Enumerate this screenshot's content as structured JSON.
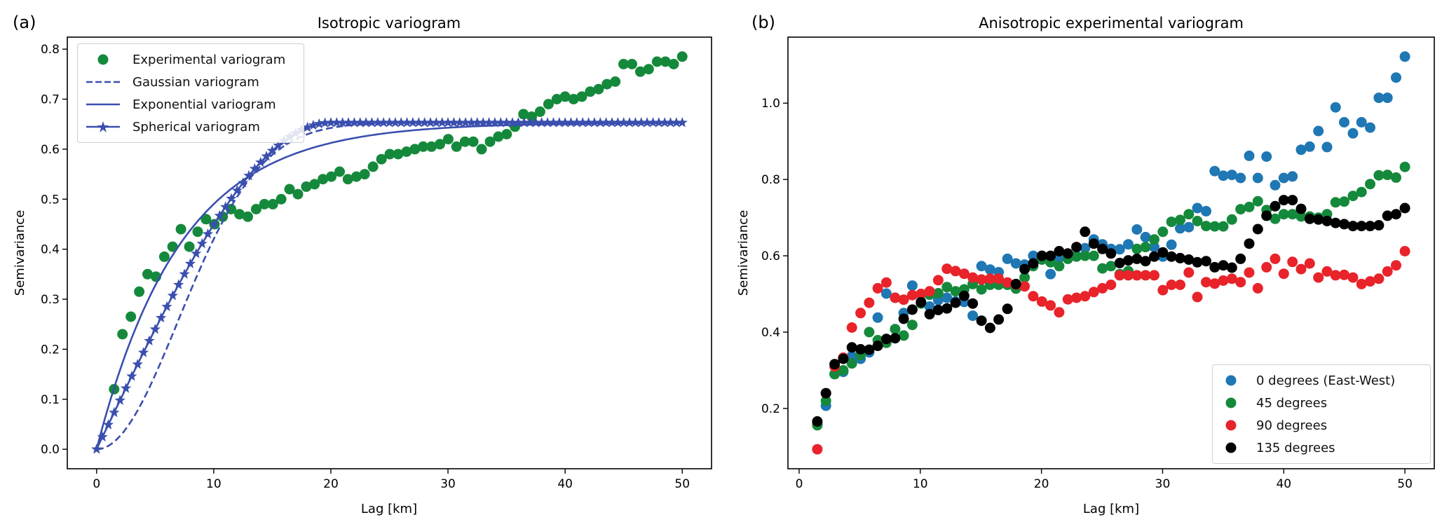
{
  "chart_data": [
    {
      "panel_label": "(a)",
      "type": "scatter+line",
      "title": "Isotropic variogram",
      "xlabel": "Lag [km]",
      "ylabel": "Semivariance",
      "xlim": [
        -2.5,
        52.5
      ],
      "ylim": [
        -0.039,
        0.824
      ],
      "xticks": [
        0,
        10,
        20,
        30,
        40,
        50
      ],
      "yticks": [
        0.0,
        0.1,
        0.2,
        0.3,
        0.4,
        0.5,
        0.6,
        0.7,
        0.8
      ],
      "grid": false,
      "legend_position": "top-left",
      "series": [
        {
          "name": "Experimental variogram",
          "kind": "scatter",
          "color": "#15893b",
          "x": [
            1.5,
            2.21,
            2.93,
            3.64,
            4.35,
            5.07,
            5.78,
            6.49,
            7.2,
            7.92,
            8.63,
            9.34,
            10.06,
            10.77,
            11.48,
            12.2,
            12.91,
            13.62,
            14.33,
            15.05,
            15.76,
            16.47,
            17.19,
            17.9,
            18.61,
            19.32,
            20.04,
            20.75,
            21.46,
            22.18,
            22.89,
            23.6,
            24.32,
            25.03,
            25.74,
            26.46,
            27.17,
            27.88,
            28.59,
            29.31,
            30.02,
            30.73,
            31.45,
            32.16,
            32.87,
            33.59,
            34.3,
            35.01,
            35.72,
            36.44,
            37.15,
            37.86,
            38.58,
            39.29,
            40.0,
            40.72,
            41.43,
            42.14,
            42.86,
            43.57,
            44.28,
            44.99,
            45.71,
            46.42,
            47.13,
            47.85,
            48.56,
            49.27,
            50.0
          ],
          "y": [
            0.12,
            0.23,
            0.265,
            0.315,
            0.35,
            0.345,
            0.385,
            0.405,
            0.44,
            0.405,
            0.435,
            0.46,
            0.45,
            0.465,
            0.48,
            0.47,
            0.465,
            0.48,
            0.49,
            0.49,
            0.5,
            0.52,
            0.51,
            0.525,
            0.53,
            0.54,
            0.545,
            0.555,
            0.54,
            0.545,
            0.55,
            0.565,
            0.58,
            0.59,
            0.59,
            0.595,
            0.6,
            0.605,
            0.605,
            0.61,
            0.62,
            0.605,
            0.615,
            0.615,
            0.6,
            0.615,
            0.625,
            0.63,
            0.645,
            0.67,
            0.665,
            0.675,
            0.69,
            0.7,
            0.705,
            0.7,
            0.705,
            0.715,
            0.72,
            0.73,
            0.735,
            0.77,
            0.77,
            0.755,
            0.76,
            0.775,
            0.775,
            0.77,
            0.785
          ]
        },
        {
          "name": "Gaussian variogram",
          "kind": "model",
          "model": "gaussian",
          "sill": 0.653,
          "range": 9.85,
          "style": "dashed",
          "color": "#3a4fae"
        },
        {
          "name": "Exponential variogram",
          "kind": "model",
          "model": "exponential",
          "sill": 0.653,
          "range": 7.2,
          "style": "solid",
          "color": "#3a4fae"
        },
        {
          "name": "Spherical variogram",
          "kind": "model",
          "model": "spherical",
          "sill": 0.653,
          "range": 20.0,
          "style": "star-markers",
          "color": "#3a4fae"
        }
      ]
    },
    {
      "panel_label": "(b)",
      "type": "scatter",
      "title": "Anisotropic experimental variogram",
      "xlabel": "Lag [km]",
      "ylabel": "Semivariance",
      "xlim": [
        -0.925,
        52.425
      ],
      "ylim": [
        0.042,
        1.173
      ],
      "xticks": [
        0,
        10,
        20,
        30,
        40,
        50
      ],
      "yticks": [
        0.2,
        0.4,
        0.6,
        0.8,
        1.0
      ],
      "grid": false,
      "legend_position": "bottom-right",
      "series": [
        {
          "name": "0 degrees (East-West)",
          "color": "#1f77b4",
          "y": [
            0.16,
            0.207,
            0.29,
            0.296,
            0.337,
            0.33,
            0.347,
            0.438,
            0.501,
            0.49,
            0.45,
            0.522,
            0.48,
            0.467,
            0.484,
            0.49,
            0.48,
            0.479,
            0.443,
            0.573,
            0.564,
            0.557,
            0.592,
            0.58,
            0.577,
            0.6,
            0.6,
            0.552,
            0.595,
            0.6,
            0.6,
            0.62,
            0.643,
            0.63,
            0.618,
            0.617,
            0.63,
            0.669,
            0.649,
            0.623,
            0.598,
            0.629,
            0.672,
            0.675,
            0.725,
            0.717,
            0.822,
            0.81,
            0.812,
            0.804,
            0.862,
            0.804,
            0.86,
            0.785,
            0.804,
            0.808,
            0.878,
            0.886,
            0.927,
            0.885,
            0.989,
            0.95,
            0.921,
            0.95,
            0.936,
            1.014,
            1.014,
            1.067,
            1.122
          ]
        },
        {
          "name": "45 degrees",
          "color": "#15893b",
          "y": [
            0.156,
            0.22,
            0.29,
            0.3,
            0.318,
            0.34,
            0.4,
            0.379,
            0.372,
            0.408,
            0.391,
            0.419,
            0.475,
            0.498,
            0.502,
            0.518,
            0.507,
            0.512,
            0.526,
            0.512,
            0.524,
            0.524,
            0.524,
            0.514,
            0.543,
            0.573,
            0.59,
            0.583,
            0.573,
            0.592,
            0.598,
            0.6,
            0.6,
            0.567,
            0.573,
            0.552,
            0.56,
            0.618,
            0.623,
            0.643,
            0.663,
            0.689,
            0.694,
            0.709,
            0.691,
            0.678,
            0.677,
            0.677,
            0.695,
            0.722,
            0.728,
            0.743,
            0.72,
            0.697,
            0.709,
            0.709,
            0.703,
            0.703,
            0.7,
            0.709,
            0.74,
            0.742,
            0.757,
            0.767,
            0.788,
            0.811,
            0.812,
            0.805,
            0.833
          ]
        },
        {
          "name": "90 degrees",
          "color": "#e8232a",
          "y": [
            0.093,
            0.24,
            0.31,
            0.333,
            0.412,
            0.45,
            0.477,
            0.515,
            0.53,
            0.49,
            0.485,
            0.497,
            0.5,
            0.507,
            0.536,
            0.566,
            0.56,
            0.553,
            0.543,
            0.538,
            0.54,
            0.54,
            0.53,
            0.525,
            0.52,
            0.494,
            0.48,
            0.47,
            0.452,
            0.486,
            0.49,
            0.494,
            0.505,
            0.515,
            0.524,
            0.549,
            0.549,
            0.549,
            0.549,
            0.549,
            0.51,
            0.524,
            0.524,
            0.556,
            0.492,
            0.531,
            0.527,
            0.535,
            0.54,
            0.531,
            0.556,
            0.515,
            0.57,
            0.592,
            0.553,
            0.584,
            0.565,
            0.58,
            0.543,
            0.559,
            0.549,
            0.55,
            0.543,
            0.526,
            0.533,
            0.54,
            0.559,
            0.575,
            0.612
          ]
        },
        {
          "name": "135 degrees",
          "color": "#000000",
          "y": [
            0.166,
            0.24,
            0.316,
            0.33,
            0.36,
            0.355,
            0.354,
            0.364,
            0.382,
            0.384,
            0.435,
            0.459,
            0.478,
            0.447,
            0.458,
            0.462,
            0.477,
            0.495,
            0.475,
            0.43,
            0.411,
            0.433,
            0.461,
            0.526,
            0.565,
            0.58,
            0.6,
            0.6,
            0.612,
            0.606,
            0.623,
            0.663,
            0.632,
            0.618,
            0.606,
            0.581,
            0.588,
            0.592,
            0.586,
            0.598,
            0.609,
            0.598,
            0.594,
            0.59,
            0.583,
            0.586,
            0.57,
            0.575,
            0.569,
            0.592,
            0.632,
            0.67,
            0.705,
            0.73,
            0.746,
            0.746,
            0.723,
            0.697,
            0.695,
            0.691,
            0.686,
            0.683,
            0.678,
            0.678,
            0.678,
            0.68,
            0.705,
            0.709,
            0.725
          ]
        }
      ],
      "x": [
        1.5,
        2.21,
        2.93,
        3.64,
        4.35,
        5.07,
        5.78,
        6.49,
        7.2,
        7.92,
        8.63,
        9.34,
        10.06,
        10.77,
        11.48,
        12.2,
        12.91,
        13.62,
        14.33,
        15.05,
        15.76,
        16.47,
        17.19,
        17.9,
        18.61,
        19.32,
        20.04,
        20.75,
        21.46,
        22.18,
        22.89,
        23.6,
        24.32,
        25.03,
        25.74,
        26.46,
        27.17,
        27.88,
        28.59,
        29.31,
        30.02,
        30.73,
        31.45,
        32.16,
        32.87,
        33.59,
        34.3,
        35.01,
        35.72,
        36.44,
        37.15,
        37.86,
        38.58,
        39.29,
        40.0,
        40.72,
        41.43,
        42.14,
        42.86,
        43.57,
        44.28,
        44.99,
        45.71,
        46.42,
        47.13,
        47.85,
        48.56,
        49.27,
        50.0
      ]
    }
  ]
}
